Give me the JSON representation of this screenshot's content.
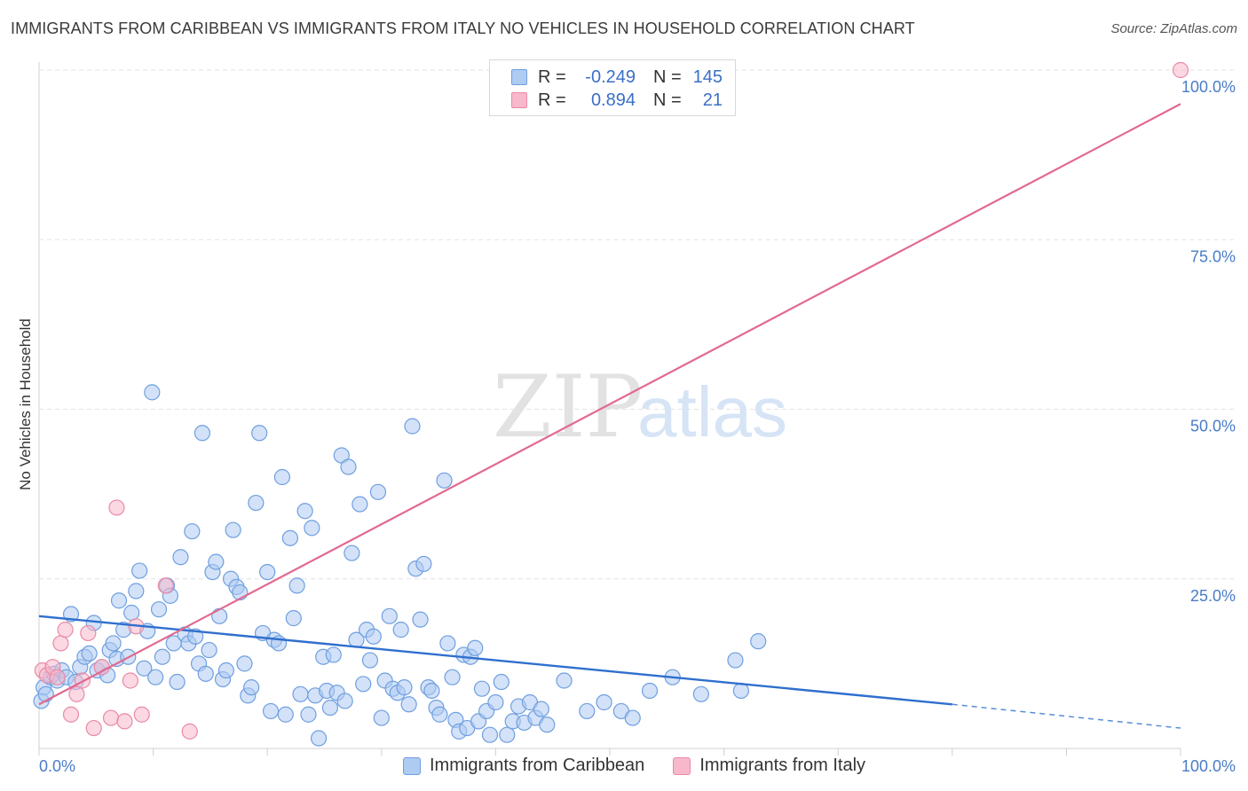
{
  "header": {
    "title": "IMMIGRANTS FROM CARIBBEAN VS IMMIGRANTS FROM ITALY NO VEHICLES IN HOUSEHOLD CORRELATION CHART",
    "source": "Source: ZipAtlas.com"
  },
  "watermark": {
    "zip": "ZIP",
    "atlas": "atlas"
  },
  "legend": {
    "rows": [
      {
        "r_label": "R =",
        "r_value": "-0.249",
        "n_label": "N =",
        "n_value": "145",
        "color": "#aecbf2",
        "border": "#6f9fe0"
      },
      {
        "r_label": "R =",
        "r_value": "0.894",
        "n_label": "N =",
        "n_value": "21",
        "color": "#f7b8cb",
        "border": "#e98aa7"
      }
    ]
  },
  "bottom_legend": {
    "items": [
      {
        "label": "Immigrants from Caribbean",
        "color": "#aecbf2",
        "border": "#6f9fe0"
      },
      {
        "label": "Immigrants from Italy",
        "color": "#f7b8cb",
        "border": "#e98aa7"
      }
    ]
  },
  "chart_data": {
    "type": "scatter",
    "title": "IMMIGRANTS FROM CARIBBEAN VS IMMIGRANTS FROM ITALY NO VEHICLES IN HOUSEHOLD CORRELATION CHART",
    "xlabel": "",
    "ylabel": "No Vehicles in Household",
    "xlim": [
      0,
      100
    ],
    "ylim": [
      0,
      100
    ],
    "x_ticks": [
      "0.0%",
      "100.0%"
    ],
    "y_ticks": [
      {
        "value": 25,
        "label": "25.0%"
      },
      {
        "value": 50,
        "label": "50.0%"
      },
      {
        "value": 75,
        "label": "75.0%"
      },
      {
        "value": 100,
        "label": "100.0%"
      }
    ],
    "grid": true,
    "legend_position": "top-center",
    "series": [
      {
        "name": "Immigrants from Caribbean",
        "color": "#6f9fe0",
        "fill": "#aecbf2",
        "trend": {
          "x0": 0,
          "y0": 19.5,
          "x1": 80,
          "y1": 6.5,
          "dash_to_x": 100,
          "dash_to_y": 3.0,
          "color": "#2f6fce"
        },
        "points": [
          [
            0.2,
            7.0
          ],
          [
            0.4,
            9.0
          ],
          [
            0.6,
            8.0
          ],
          [
            1.0,
            10.5
          ],
          [
            1.3,
            11.0
          ],
          [
            1.6,
            10.0
          ],
          [
            2.0,
            11.5
          ],
          [
            2.4,
            10.5
          ],
          [
            2.8,
            19.8
          ],
          [
            3.2,
            9.8
          ],
          [
            3.6,
            12.0
          ],
          [
            4.0,
            13.5
          ],
          [
            4.4,
            14.0
          ],
          [
            4.8,
            18.5
          ],
          [
            5.1,
            11.5
          ],
          [
            5.5,
            12.0
          ],
          [
            6.0,
            10.8
          ],
          [
            6.2,
            14.5
          ],
          [
            6.5,
            15.5
          ],
          [
            6.8,
            13.2
          ],
          [
            7.0,
            21.8
          ],
          [
            7.4,
            17.5
          ],
          [
            7.8,
            13.5
          ],
          [
            8.1,
            20.0
          ],
          [
            8.5,
            23.2
          ],
          [
            8.8,
            26.2
          ],
          [
            9.2,
            11.8
          ],
          [
            9.5,
            17.3
          ],
          [
            9.9,
            52.5
          ],
          [
            10.2,
            10.5
          ],
          [
            10.5,
            20.5
          ],
          [
            10.8,
            13.5
          ],
          [
            11.2,
            24.0
          ],
          [
            11.5,
            22.5
          ],
          [
            11.8,
            15.5
          ],
          [
            12.1,
            9.8
          ],
          [
            12.4,
            28.2
          ],
          [
            12.8,
            16.8
          ],
          [
            13.1,
            15.5
          ],
          [
            13.4,
            32.0
          ],
          [
            13.7,
            16.5
          ],
          [
            14.0,
            12.5
          ],
          [
            14.3,
            46.5
          ],
          [
            14.6,
            11.0
          ],
          [
            14.9,
            14.5
          ],
          [
            15.2,
            26.0
          ],
          [
            15.5,
            27.5
          ],
          [
            15.8,
            19.5
          ],
          [
            16.1,
            10.2
          ],
          [
            16.4,
            11.5
          ],
          [
            16.8,
            25.0
          ],
          [
            17.0,
            32.2
          ],
          [
            17.3,
            23.8
          ],
          [
            17.6,
            23.0
          ],
          [
            18.0,
            12.5
          ],
          [
            18.3,
            7.8
          ],
          [
            18.6,
            9.0
          ],
          [
            19.0,
            36.2
          ],
          [
            19.3,
            46.5
          ],
          [
            19.6,
            17.0
          ],
          [
            20.0,
            26.0
          ],
          [
            20.3,
            5.5
          ],
          [
            20.6,
            16.0
          ],
          [
            21.0,
            15.5
          ],
          [
            21.3,
            40.0
          ],
          [
            21.6,
            5.0
          ],
          [
            22.0,
            31.0
          ],
          [
            22.3,
            19.2
          ],
          [
            22.6,
            24.0
          ],
          [
            22.9,
            8.0
          ],
          [
            23.3,
            35.0
          ],
          [
            23.6,
            5.0
          ],
          [
            23.9,
            32.5
          ],
          [
            24.2,
            7.8
          ],
          [
            24.5,
            1.5
          ],
          [
            24.9,
            13.5
          ],
          [
            25.2,
            8.5
          ],
          [
            25.5,
            6.0
          ],
          [
            25.8,
            13.8
          ],
          [
            26.1,
            8.2
          ],
          [
            26.5,
            43.2
          ],
          [
            26.8,
            7.0
          ],
          [
            27.1,
            41.5
          ],
          [
            27.4,
            28.8
          ],
          [
            27.8,
            16.0
          ],
          [
            28.1,
            36.0
          ],
          [
            28.4,
            9.5
          ],
          [
            28.7,
            17.5
          ],
          [
            29.0,
            13.0
          ],
          [
            29.3,
            16.5
          ],
          [
            29.7,
            37.8
          ],
          [
            30.0,
            4.5
          ],
          [
            30.3,
            10.0
          ],
          [
            30.7,
            19.5
          ],
          [
            31.0,
            8.8
          ],
          [
            31.4,
            8.2
          ],
          [
            31.7,
            17.5
          ],
          [
            32.0,
            9.0
          ],
          [
            32.4,
            6.5
          ],
          [
            32.7,
            47.5
          ],
          [
            33.0,
            26.5
          ],
          [
            33.4,
            19.0
          ],
          [
            33.7,
            27.2
          ],
          [
            34.1,
            9.0
          ],
          [
            34.4,
            8.5
          ],
          [
            34.8,
            6.0
          ],
          [
            35.1,
            5.0
          ],
          [
            35.5,
            39.5
          ],
          [
            35.8,
            15.5
          ],
          [
            36.2,
            10.5
          ],
          [
            36.5,
            4.2
          ],
          [
            36.8,
            2.5
          ],
          [
            37.2,
            13.8
          ],
          [
            37.5,
            3.0
          ],
          [
            37.8,
            13.5
          ],
          [
            38.2,
            14.8
          ],
          [
            38.5,
            4.0
          ],
          [
            38.8,
            8.8
          ],
          [
            39.2,
            5.5
          ],
          [
            39.5,
            2.0
          ],
          [
            40.0,
            6.8
          ],
          [
            40.5,
            9.8
          ],
          [
            41.0,
            2.0
          ],
          [
            41.5,
            4.0
          ],
          [
            42.0,
            6.2
          ],
          [
            42.5,
            3.8
          ],
          [
            43.0,
            6.8
          ],
          [
            43.5,
            4.5
          ],
          [
            44.0,
            5.8
          ],
          [
            44.5,
            3.5
          ],
          [
            46.0,
            10.0
          ],
          [
            48.0,
            5.5
          ],
          [
            49.5,
            6.8
          ],
          [
            51.0,
            5.5
          ],
          [
            52.0,
            4.5
          ],
          [
            53.5,
            8.5
          ],
          [
            55.5,
            10.5
          ],
          [
            58.0,
            8.0
          ],
          [
            61.0,
            13.0
          ],
          [
            63.0,
            15.8
          ],
          [
            61.5,
            8.5
          ]
        ]
      },
      {
        "name": "Immigrants from Italy",
        "color": "#e98aa7",
        "fill": "#f7b8cb",
        "trend": {
          "x0": 0,
          "y0": 6.5,
          "x1": 100,
          "y1": 95.0,
          "color": "#e2698f"
        },
        "points": [
          [
            0.3,
            11.5
          ],
          [
            0.7,
            10.8
          ],
          [
            1.2,
            12.0
          ],
          [
            1.6,
            10.5
          ],
          [
            1.9,
            15.5
          ],
          [
            2.3,
            17.5
          ],
          [
            2.8,
            5.0
          ],
          [
            3.3,
            8.0
          ],
          [
            3.8,
            10.0
          ],
          [
            4.3,
            17.0
          ],
          [
            4.8,
            3.0
          ],
          [
            5.5,
            12.0
          ],
          [
            6.3,
            4.5
          ],
          [
            6.8,
            35.5
          ],
          [
            7.5,
            4.0
          ],
          [
            8.0,
            10.0
          ],
          [
            8.5,
            18.0
          ],
          [
            9.0,
            5.0
          ],
          [
            11.1,
            24.0
          ],
          [
            13.2,
            2.5
          ],
          [
            100.0,
            100.0
          ]
        ]
      }
    ]
  }
}
